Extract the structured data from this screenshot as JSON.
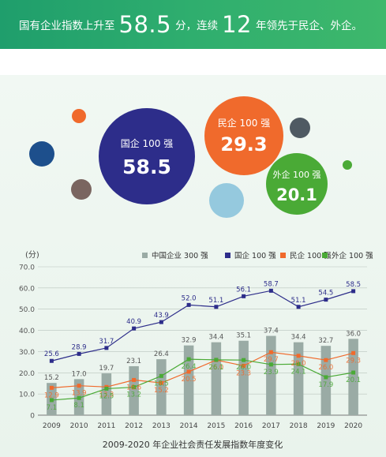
{
  "banner": {
    "part1": "国有企业指数上升至",
    "value1": "58.5",
    "part2": "分，连续",
    "value2": "12",
    "part3": "年领先于民企、外企。"
  },
  "bubbles": [
    {
      "label": "国企 100 强",
      "value": "58.5",
      "color": "#2d2d8a"
    },
    {
      "label": "民企 100 强",
      "value": "29.3",
      "color": "#f06a2c"
    },
    {
      "label": "外企 100 强",
      "value": "20.1",
      "color": "#4aaa36"
    }
  ],
  "colors": {
    "bar": "#9aaba5",
    "soe": "#2d2d8a",
    "private": "#f06a2c",
    "foreign": "#4aaa36",
    "dot_orange": "#f06a2c",
    "dot_navy": "#1d4f8c",
    "dot_brown": "#7a6560",
    "dot_gray": "#4f5a63",
    "dot_lightblue": "#95c9de",
    "dot_green": "#4aaa36"
  },
  "chart_data": {
    "type": "bar",
    "title": "2009-2020 年企业社会责任发展指数年度变化",
    "ylabel": "(分)",
    "ylim": [
      0,
      70
    ],
    "yticks": [
      "0",
      "10.0",
      "20.0",
      "30.0",
      "40.0",
      "50.0",
      "60.0",
      "70.0"
    ],
    "grid": true,
    "legend_position": "top-right",
    "categories": [
      "2009",
      "2010",
      "2011",
      "2012",
      "2013",
      "2014",
      "2015",
      "2016",
      "2017",
      "2018",
      "2019",
      "2020"
    ],
    "series": [
      {
        "name": "中国企业 300 强",
        "type": "bar",
        "values": [
          15.2,
          17.0,
          19.7,
          23.1,
          26.4,
          32.9,
          34.4,
          35.1,
          37.4,
          34.4,
          32.7,
          36.0
        ]
      },
      {
        "name": "国企 100 强",
        "type": "line",
        "values": [
          25.6,
          28.9,
          31.7,
          40.9,
          43.9,
          52.0,
          51.1,
          56.1,
          58.7,
          51.1,
          54.5,
          58.5
        ]
      },
      {
        "name": "民企 100 强",
        "type": "line",
        "values": [
          12.9,
          13.9,
          13.3,
          16.6,
          15.2,
          20.5,
          26.0,
          23.3,
          29.7,
          28.0,
          26.0,
          29.3
        ]
      },
      {
        "name": "外企 100 强",
        "type": "line",
        "values": [
          7.1,
          8.1,
          12.5,
          13.2,
          18.5,
          26.4,
          26.1,
          26.0,
          23.9,
          24.1,
          17.9,
          20.1
        ]
      }
    ]
  }
}
